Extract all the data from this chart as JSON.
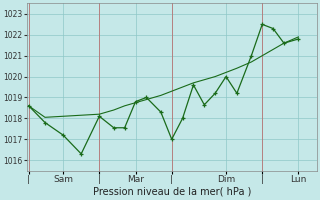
{
  "xlabel": "Pression niveau de la mer( hPa )",
  "background_color": "#c5e8e8",
  "grid_color": "#8fc8c8",
  "line_color": "#1a6b1a",
  "vline_color": "#c06060",
  "ylim": [
    1015.5,
    1023.5
  ],
  "yticks": [
    1016,
    1017,
    1018,
    1019,
    1020,
    1021,
    1022,
    1023
  ],
  "xlim": [
    0,
    8.0
  ],
  "xtick_labels": [
    "|",
    "Sam",
    "|",
    "Mar",
    "|",
    "Dim",
    "|",
    "Lun"
  ],
  "xtick_positions": [
    0.05,
    1.0,
    2.0,
    3.0,
    4.0,
    5.5,
    6.5,
    7.5
  ],
  "vline_positions": [
    0.05,
    2.0,
    4.0,
    6.5
  ],
  "series1_x": [
    0.05,
    0.5,
    1.0,
    1.5,
    2.0,
    2.4,
    2.7,
    3.0,
    3.3,
    3.7,
    4.0,
    4.3,
    4.6,
    4.9,
    5.2,
    5.5,
    5.8,
    6.2,
    6.5,
    6.8,
    7.1,
    7.5
  ],
  "series1_y": [
    1018.6,
    1017.8,
    1017.2,
    1016.3,
    1018.1,
    1017.55,
    1017.55,
    1018.8,
    1019.0,
    1018.3,
    1017.0,
    1018.0,
    1019.6,
    1018.65,
    1019.2,
    1020.0,
    1019.2,
    1021.0,
    1022.5,
    1022.3,
    1021.6,
    1021.8
  ],
  "series2_x": [
    0.05,
    0.5,
    1.0,
    1.5,
    2.0,
    2.4,
    2.7,
    3.0,
    3.3,
    3.7,
    4.0,
    4.3,
    4.6,
    4.9,
    5.2,
    5.5,
    5.8,
    6.2,
    6.5,
    6.8,
    7.1,
    7.5
  ],
  "series2_y": [
    1018.6,
    1018.05,
    1018.1,
    1018.15,
    1018.2,
    1018.4,
    1018.6,
    1018.75,
    1018.9,
    1019.1,
    1019.3,
    1019.5,
    1019.7,
    1019.85,
    1020.0,
    1020.2,
    1020.4,
    1020.7,
    1021.0,
    1021.3,
    1021.6,
    1021.9
  ]
}
